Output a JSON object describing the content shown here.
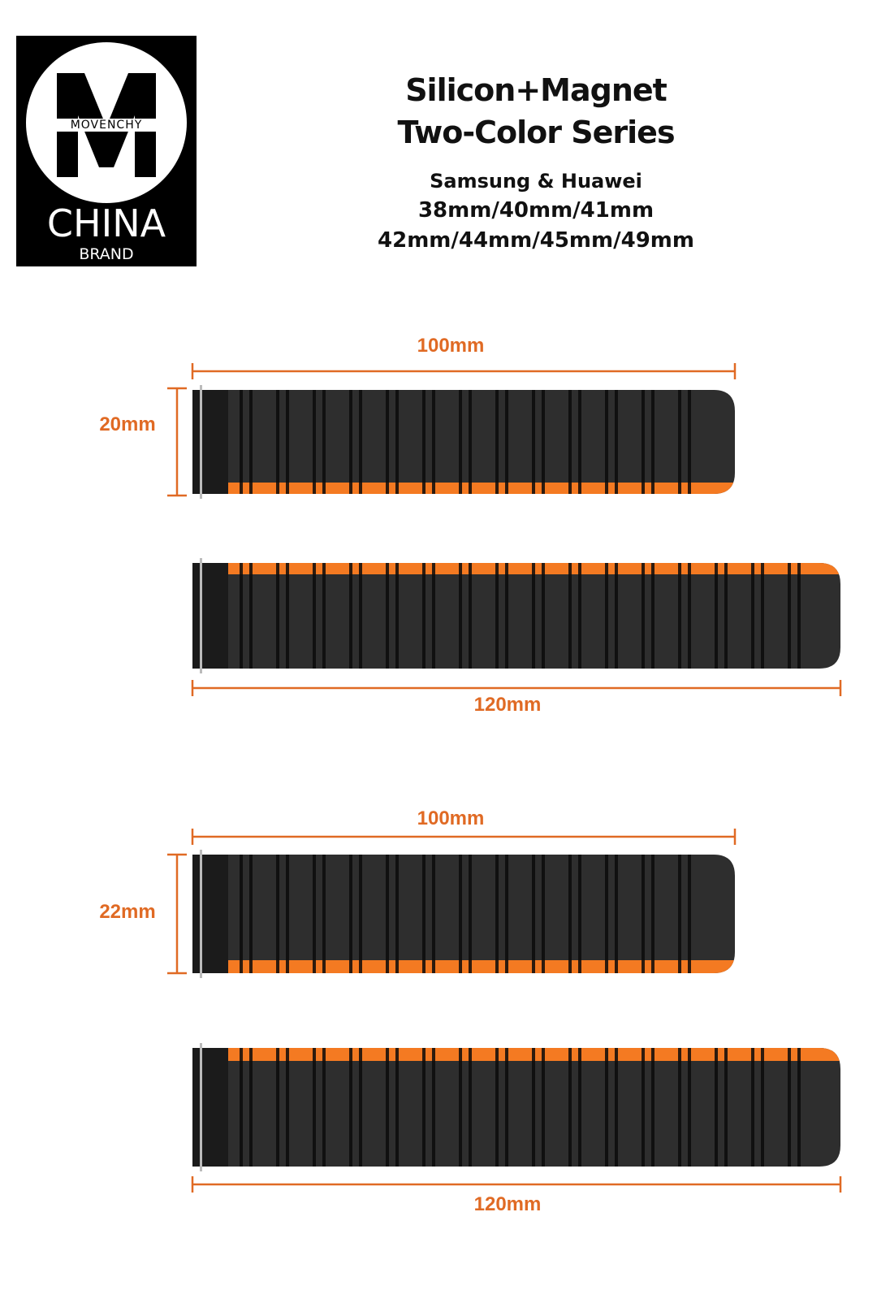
{
  "logo": {
    "letter": "M",
    "wordmark": "MOVENCHY",
    "line1": "CHINA",
    "line2": "BRAND"
  },
  "header": {
    "title_line1": "Silicon+Magnet",
    "title_line2": "Two-Color Series",
    "compat": "Samsung & Huawei",
    "sizes_line1": "38mm/40mm/41mm",
    "sizes_line2": "42mm/44mm/45mm/49mm"
  },
  "colors": {
    "accent": "#f47a22",
    "band": "#2e2e2e",
    "groove": "#0a0a0a",
    "dimension": "#e06a24"
  },
  "groups": [
    {
      "width_label": "20mm",
      "short_label": "100mm",
      "long_label": "120mm"
    },
    {
      "width_label": "22mm",
      "short_label": "100mm",
      "long_label": "120mm"
    }
  ]
}
